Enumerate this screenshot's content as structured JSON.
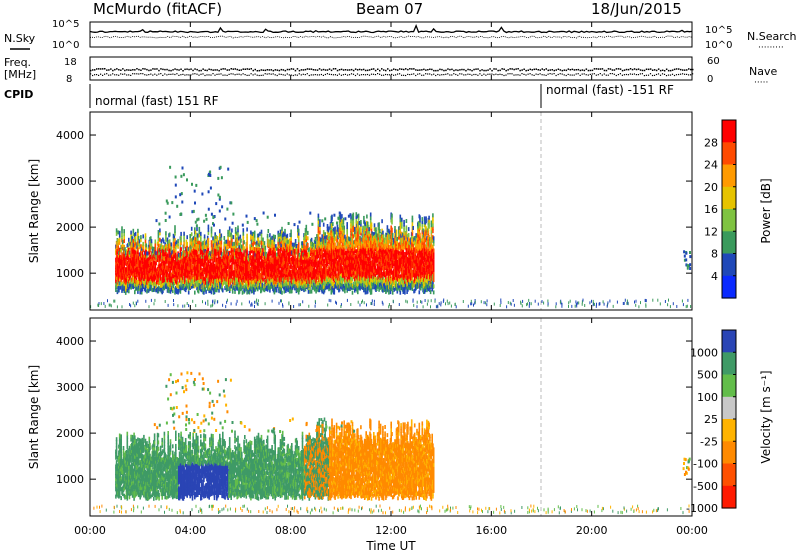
{
  "header": {
    "station": "McMurdo (fitACF)",
    "beam": "Beam 07",
    "date": "18/Jun/2015"
  },
  "noise_panel": {
    "left_label": "N.Sky",
    "right_label": "N.Search",
    "ticks_left": [
      "10^5",
      "10^0"
    ],
    "ticks_right": [
      "10^5",
      "10^0"
    ]
  },
  "freq_panel": {
    "left_label_1": "Freq.",
    "left_label_2": "[MHz]",
    "right_label": "Nave",
    "ticks_left": [
      "18",
      "8"
    ],
    "ticks_right": [
      "60",
      "0"
    ]
  },
  "cpid_panel": {
    "label": "CPID",
    "modes": [
      "normal (fast) 151 RF",
      "normal (fast) -151 RF"
    ]
  },
  "x_axis": {
    "label": "Time UT",
    "tick_labels": [
      "00:00",
      "04:00",
      "08:00",
      "12:00",
      "16:00",
      "20:00",
      "00:00"
    ]
  },
  "power_panel": {
    "ylabel": "Slant Range [km]",
    "colorbar_label": "Power [dB]",
    "colorbar_ticks": [
      "28",
      "24",
      "20",
      "16",
      "12",
      "8",
      "4"
    ],
    "colors": [
      "#ff0000",
      "#ff4a00",
      "#ff9a00",
      "#e6c300",
      "#7fc341",
      "#3a9a5c",
      "#1f48b8",
      "#0a2aff"
    ]
  },
  "velocity_panel": {
    "ylabel": "Slant Range [km]",
    "colorbar_label": "Velocity [m s⁻¹]",
    "colorbar_ticks": [
      "1000",
      "500",
      "100",
      "25",
      "-25",
      "-100",
      "-500",
      "-1000"
    ],
    "colors": [
      "#2a45b5",
      "#3f9a66",
      "#62bd4a",
      "#c8c8c8",
      "#ffb300",
      "#ff8a00",
      "#ff5000",
      "#ff1a00"
    ]
  },
  "chart_data": [
    {
      "type": "line",
      "title": "McMurdo (fitACF) Beam 07 18/Jun/2015",
      "ylabel": "N.Sky / N.Search",
      "x_range": [
        "00:00",
        "24:00"
      ],
      "series": [
        {
          "name": "N.Sky",
          "x": [
            0,
            24
          ],
          "y": [
            100000,
            100000
          ]
        },
        {
          "name": "N.Search",
          "x": [
            0,
            24
          ],
          "y": [
            50000,
            50000
          ]
        }
      ]
    },
    {
      "type": "line",
      "ylabel": "Freq. [MHz] / Nave",
      "x_range": [
        "00:00",
        "24:00"
      ],
      "series": [
        {
          "name": "Freq.",
          "x": [
            0,
            24
          ],
          "y": [
            12,
            12
          ]
        },
        {
          "name": "Nave",
          "x": [
            0,
            24
          ],
          "y": [
            30,
            30
          ]
        }
      ]
    },
    {
      "type": "heatmap",
      "quantity": "Power [dB]",
      "xlabel": "Time UT",
      "ylabel": "Slant Range [km]",
      "xlim": [
        0,
        24
      ],
      "ylim": [
        200,
        4500
      ],
      "clim": [
        0,
        32
      ],
      "note_regions": [
        {
          "t_start": 1.0,
          "t_end": 13.7,
          "range_min": 600,
          "range_max": 2200,
          "peak_power": 30
        },
        {
          "t_start": 3.0,
          "t_end": 5.5,
          "range_min": 2500,
          "range_max": 3300,
          "peak_power": 20
        }
      ]
    },
    {
      "type": "heatmap",
      "quantity": "Velocity [m s⁻¹]",
      "xlabel": "Time UT",
      "ylabel": "Slant Range [km]",
      "xlim": [
        0,
        24
      ],
      "ylim": [
        200,
        4500
      ],
      "clim": [
        -1000,
        1000
      ],
      "note_regions": [
        {
          "t_start": 1.0,
          "t_end": 8.5,
          "range_min": 600,
          "range_max": 1700,
          "velocity": 200
        },
        {
          "t_start": 8.5,
          "t_end": 13.7,
          "range_min": 700,
          "range_max": 2200,
          "velocity": -300
        }
      ]
    }
  ]
}
